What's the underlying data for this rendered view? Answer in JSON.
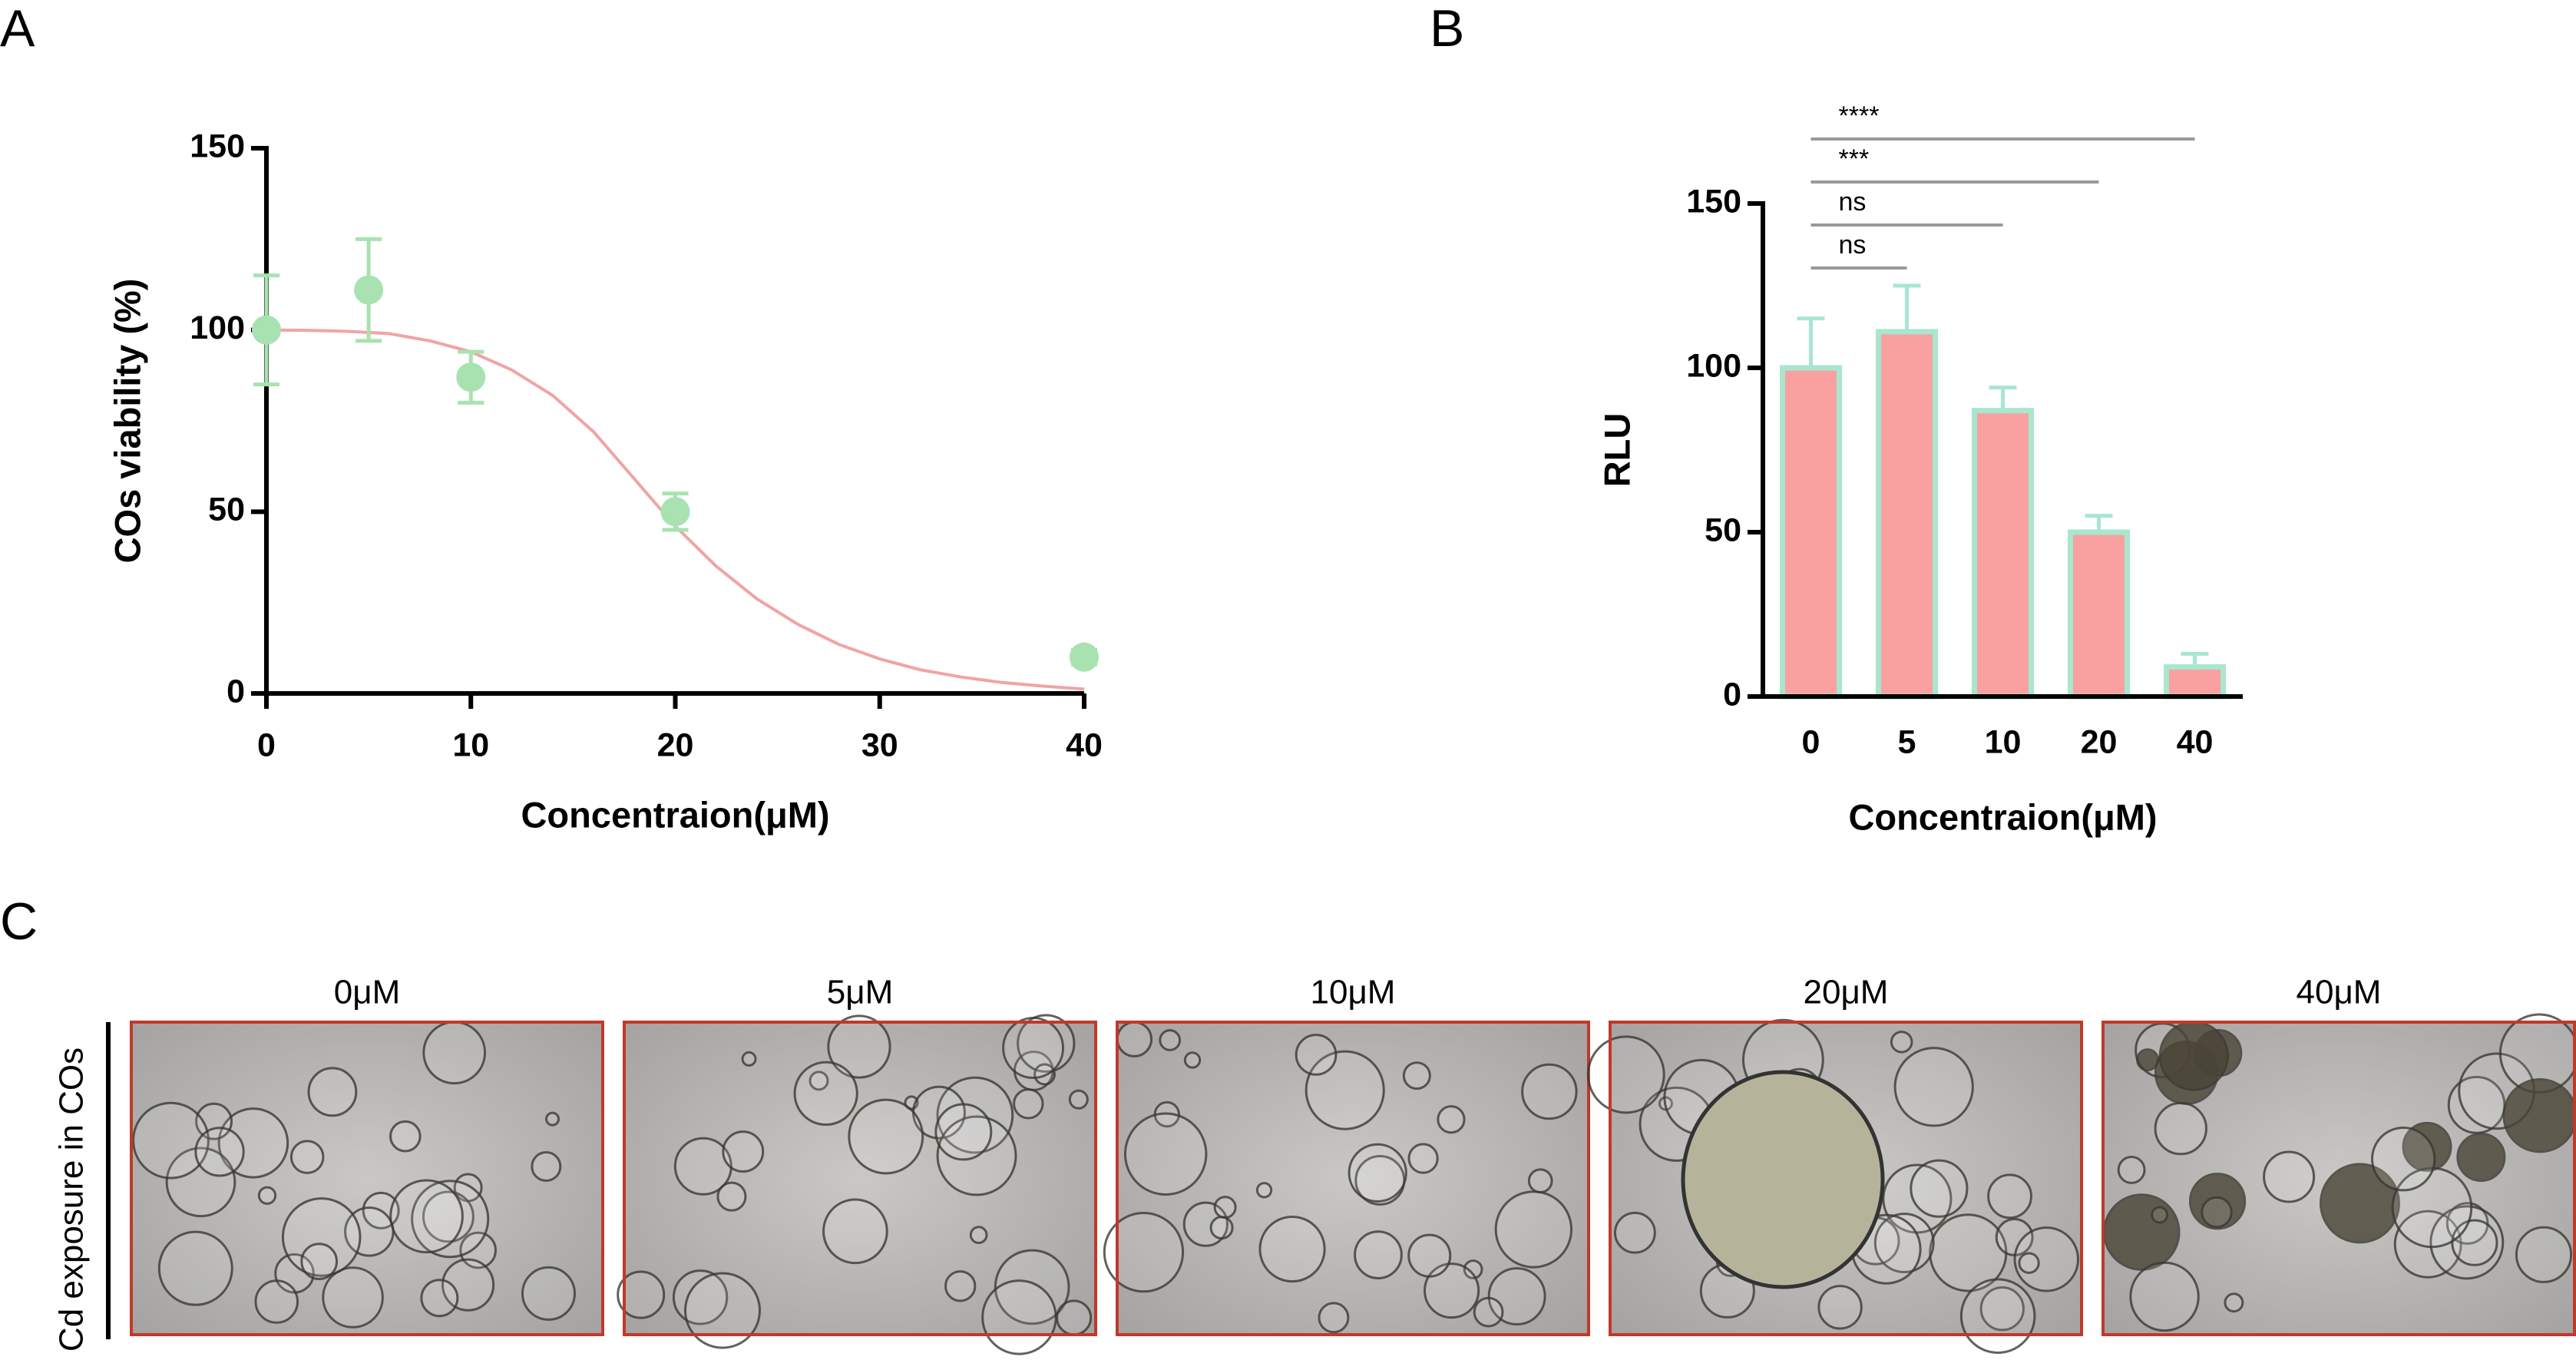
{
  "panel_labels": [
    "A",
    "B",
    "C"
  ],
  "chart_data": [
    {
      "type": "scatter",
      "xlabel": "Concentraion(μM)",
      "ylabel": "COs viability (%)",
      "xlim": [
        0,
        40
      ],
      "ylim": [
        0,
        150
      ],
      "xticks": [
        0,
        10,
        20,
        30,
        40
      ],
      "yticks": [
        0,
        50,
        100,
        150
      ],
      "x": [
        0,
        5,
        10,
        20,
        40
      ],
      "values": [
        100,
        111,
        87,
        50,
        10
      ],
      "errors": [
        15,
        14,
        7,
        5,
        2
      ],
      "color": "#a8e2b0",
      "fit": {
        "color": "#f2a3a3",
        "x": [
          0,
          2,
          4,
          6,
          8,
          10,
          12,
          14,
          16,
          18,
          20,
          22,
          24,
          26,
          28,
          30,
          32,
          34,
          36,
          38,
          40
        ],
        "values": [
          100,
          99.9,
          99.6,
          99,
          97,
          94,
          89,
          82,
          72,
          59,
          46,
          35,
          26,
          19,
          13.5,
          9.5,
          6.5,
          4.5,
          3,
          2,
          1.2
        ]
      }
    },
    {
      "type": "bar",
      "xlabel": "Concentraion(μM)",
      "ylabel": "RLU",
      "categories": [
        "0",
        "5",
        "10",
        "20",
        "40"
      ],
      "values": [
        100,
        111,
        87,
        50,
        9
      ],
      "errors": [
        15,
        14,
        7,
        5,
        4
      ],
      "color": "#f9a1a1",
      "edge_color": "#a8e6cf",
      "ylim": [
        0,
        150
      ],
      "yticks": [
        0,
        50,
        100,
        150
      ],
      "significance": [
        {
          "pair": [
            0,
            1
          ],
          "label": "ns"
        },
        {
          "pair": [
            0,
            2
          ],
          "label": "ns"
        },
        {
          "pair": [
            0,
            3
          ],
          "label": "***"
        },
        {
          "pair": [
            0,
            4
          ],
          "label": "****"
        }
      ]
    }
  ],
  "panel_c": {
    "ylabel": "Cd exposure in COs",
    "labels": [
      "0μM",
      "5μM",
      "10μM",
      "20μM",
      "40μM"
    ]
  }
}
